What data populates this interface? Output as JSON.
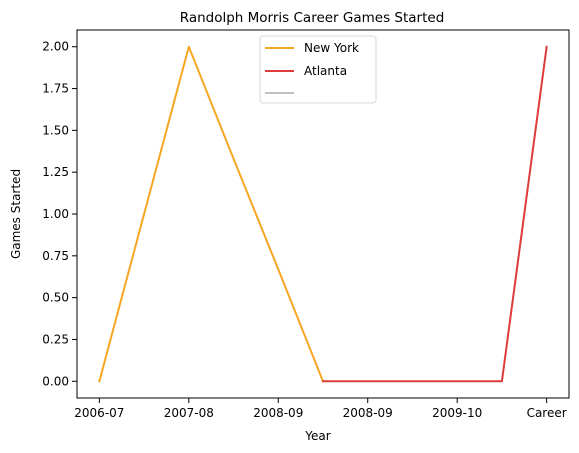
{
  "chart_data": {
    "type": "line",
    "title": "Randolph Morris Career Games Started",
    "xlabel": "Year",
    "ylabel": "Games Started",
    "categories": [
      "2006-07",
      "2007-08",
      "2008-09",
      "2008-09",
      "2009-10",
      "Career"
    ],
    "ylim": [
      -0.1,
      2.1
    ],
    "yticks": [
      0.0,
      0.25,
      0.5,
      0.75,
      1.0,
      1.25,
      1.5,
      1.75,
      2.0
    ],
    "ytick_labels": [
      "0.00",
      "0.25",
      "0.50",
      "0.75",
      "1.00",
      "1.25",
      "1.50",
      "1.75",
      "2.00"
    ],
    "grid": false,
    "legend_position": "top-center",
    "series": [
      {
        "name": "New York",
        "color": "#f5a623",
        "x": [
          0,
          0.5,
          1.0,
          1.5,
          2.0,
          2.5
        ],
        "y": [
          0,
          1,
          2,
          1.33,
          0.67,
          0
        ]
      },
      {
        "name": "Atlanta",
        "color": "#dd3c3c",
        "x": [
          2.5,
          3.5,
          4.5,
          5.0
        ],
        "y": [
          0,
          0,
          0,
          2
        ]
      },
      {
        "name": "",
        "color": "#c0c0c0",
        "x": [],
        "y": []
      }
    ]
  }
}
